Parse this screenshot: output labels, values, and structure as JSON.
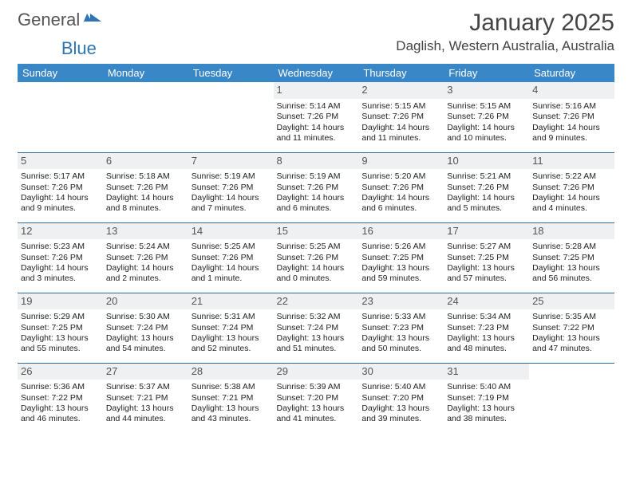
{
  "brand": {
    "part1": "General",
    "part2": "Blue"
  },
  "title": "January 2025",
  "location": "Daglish, Western Australia, Australia",
  "colors": {
    "header_bg": "#3a87c8",
    "daynum_bg": "#eef0f2",
    "rule": "#2e6ca4"
  },
  "weekdays": [
    "Sunday",
    "Monday",
    "Tuesday",
    "Wednesday",
    "Thursday",
    "Friday",
    "Saturday"
  ],
  "weeks": [
    [
      null,
      null,
      null,
      {
        "n": "1",
        "sr": "5:14 AM",
        "ss": "7:26 PM",
        "dl": "14 hours and 11 minutes."
      },
      {
        "n": "2",
        "sr": "5:15 AM",
        "ss": "7:26 PM",
        "dl": "14 hours and 11 minutes."
      },
      {
        "n": "3",
        "sr": "5:15 AM",
        "ss": "7:26 PM",
        "dl": "14 hours and 10 minutes."
      },
      {
        "n": "4",
        "sr": "5:16 AM",
        "ss": "7:26 PM",
        "dl": "14 hours and 9 minutes."
      }
    ],
    [
      {
        "n": "5",
        "sr": "5:17 AM",
        "ss": "7:26 PM",
        "dl": "14 hours and 9 minutes."
      },
      {
        "n": "6",
        "sr": "5:18 AM",
        "ss": "7:26 PM",
        "dl": "14 hours and 8 minutes."
      },
      {
        "n": "7",
        "sr": "5:19 AM",
        "ss": "7:26 PM",
        "dl": "14 hours and 7 minutes."
      },
      {
        "n": "8",
        "sr": "5:19 AM",
        "ss": "7:26 PM",
        "dl": "14 hours and 6 minutes."
      },
      {
        "n": "9",
        "sr": "5:20 AM",
        "ss": "7:26 PM",
        "dl": "14 hours and 6 minutes."
      },
      {
        "n": "10",
        "sr": "5:21 AM",
        "ss": "7:26 PM",
        "dl": "14 hours and 5 minutes."
      },
      {
        "n": "11",
        "sr": "5:22 AM",
        "ss": "7:26 PM",
        "dl": "14 hours and 4 minutes."
      }
    ],
    [
      {
        "n": "12",
        "sr": "5:23 AM",
        "ss": "7:26 PM",
        "dl": "14 hours and 3 minutes."
      },
      {
        "n": "13",
        "sr": "5:24 AM",
        "ss": "7:26 PM",
        "dl": "14 hours and 2 minutes."
      },
      {
        "n": "14",
        "sr": "5:25 AM",
        "ss": "7:26 PM",
        "dl": "14 hours and 1 minute."
      },
      {
        "n": "15",
        "sr": "5:25 AM",
        "ss": "7:26 PM",
        "dl": "14 hours and 0 minutes."
      },
      {
        "n": "16",
        "sr": "5:26 AM",
        "ss": "7:25 PM",
        "dl": "13 hours and 59 minutes."
      },
      {
        "n": "17",
        "sr": "5:27 AM",
        "ss": "7:25 PM",
        "dl": "13 hours and 57 minutes."
      },
      {
        "n": "18",
        "sr": "5:28 AM",
        "ss": "7:25 PM",
        "dl": "13 hours and 56 minutes."
      }
    ],
    [
      {
        "n": "19",
        "sr": "5:29 AM",
        "ss": "7:25 PM",
        "dl": "13 hours and 55 minutes."
      },
      {
        "n": "20",
        "sr": "5:30 AM",
        "ss": "7:24 PM",
        "dl": "13 hours and 54 minutes."
      },
      {
        "n": "21",
        "sr": "5:31 AM",
        "ss": "7:24 PM",
        "dl": "13 hours and 52 minutes."
      },
      {
        "n": "22",
        "sr": "5:32 AM",
        "ss": "7:24 PM",
        "dl": "13 hours and 51 minutes."
      },
      {
        "n": "23",
        "sr": "5:33 AM",
        "ss": "7:23 PM",
        "dl": "13 hours and 50 minutes."
      },
      {
        "n": "24",
        "sr": "5:34 AM",
        "ss": "7:23 PM",
        "dl": "13 hours and 48 minutes."
      },
      {
        "n": "25",
        "sr": "5:35 AM",
        "ss": "7:22 PM",
        "dl": "13 hours and 47 minutes."
      }
    ],
    [
      {
        "n": "26",
        "sr": "5:36 AM",
        "ss": "7:22 PM",
        "dl": "13 hours and 46 minutes."
      },
      {
        "n": "27",
        "sr": "5:37 AM",
        "ss": "7:21 PM",
        "dl": "13 hours and 44 minutes."
      },
      {
        "n": "28",
        "sr": "5:38 AM",
        "ss": "7:21 PM",
        "dl": "13 hours and 43 minutes."
      },
      {
        "n": "29",
        "sr": "5:39 AM",
        "ss": "7:20 PM",
        "dl": "13 hours and 41 minutes."
      },
      {
        "n": "30",
        "sr": "5:40 AM",
        "ss": "7:20 PM",
        "dl": "13 hours and 39 minutes."
      },
      {
        "n": "31",
        "sr": "5:40 AM",
        "ss": "7:19 PM",
        "dl": "13 hours and 38 minutes."
      },
      null
    ]
  ],
  "labels": {
    "sunrise": "Sunrise: ",
    "sunset": "Sunset: ",
    "daylight": "Daylight: "
  }
}
